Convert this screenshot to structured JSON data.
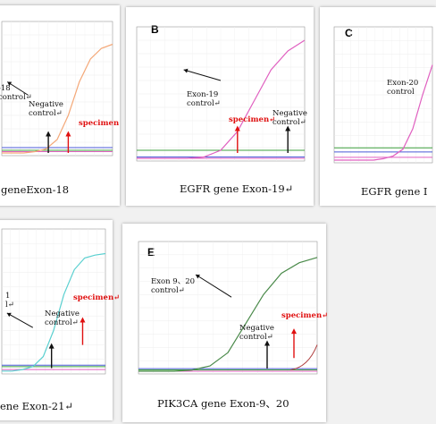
{
  "chart_data": [
    {
      "type": "line",
      "panel": "",
      "caption": "geneExon-18",
      "annotations": {
        "exon": "-18",
        "exon_suffix": "control↵",
        "negative": "Negative",
        "negative_control": "control↵",
        "specimen": "specimen"
      },
      "colors": {
        "sample": "#f4a878",
        "negative": "#1a1a1a",
        "green": "#3fa03f",
        "blue": "#4a5ad8",
        "pink": "#e060c0"
      },
      "series": [
        {
          "values": [
            0.02,
            0.02,
            0.02,
            0.03,
            0.05,
            0.12,
            0.3,
            0.55,
            0.72,
            0.8,
            0.83
          ]
        }
      ]
    },
    {
      "type": "line",
      "panel": "B",
      "caption": "EGFR gene Exon-19↵",
      "annotations": {
        "exon": "Exon-19",
        "exon_suffix": "control↵",
        "negative": "Negative",
        "negative_control": "control↵",
        "specimen": "specimen↵"
      },
      "colors": {
        "sample": "#e060c0",
        "negative": "#1a1a1a",
        "green": "#3fa03f",
        "blue": "#4a5ad8",
        "pink": "#e060c0"
      },
      "series": [
        {
          "values": [
            0.02,
            0.02,
            0.02,
            0.02,
            0.03,
            0.08,
            0.22,
            0.45,
            0.68,
            0.82,
            0.9
          ]
        }
      ]
    },
    {
      "type": "line",
      "panel": "C",
      "caption": "EGFR gene I",
      "annotations": {
        "exon": "Exon-20",
        "exon_suffix": "control",
        "negative": "",
        "negative_control": "",
        "specimen": ""
      },
      "colors": {
        "sample": "#e060c0",
        "negative": "#1a1a1a",
        "green": "#3fa03f",
        "blue": "#4a5ad8",
        "pink": "#e060c0"
      },
      "series": [
        {
          "values": [
            0.02,
            0.02,
            0.02,
            0.02,
            0.02,
            0.03,
            0.05,
            0.1,
            0.25,
            0.5,
            0.72
          ]
        }
      ]
    },
    {
      "type": "line",
      "panel": "",
      "caption": "ene Exon-21↵",
      "annotations": {
        "exon": "1",
        "exon_suffix": "l↵",
        "negative": "Negative",
        "negative_control": "control↵",
        "specimen": "specimen↵"
      },
      "colors": {
        "sample": "#5ad0d0",
        "negative": "#1a1a1a",
        "green": "#3fa03f",
        "blue": "#4a5ad8",
        "pink": "#e060c0"
      },
      "series": [
        {
          "values": [
            0.02,
            0.02,
            0.03,
            0.05,
            0.12,
            0.3,
            0.55,
            0.72,
            0.8,
            0.82,
            0.83
          ]
        }
      ]
    },
    {
      "type": "line",
      "panel": "E",
      "caption": "PIK3CA gene Exon-9、20",
      "annotations": {
        "exon": "Exon 9、20",
        "exon_suffix": "control↵",
        "negative": "Negative",
        "negative_control": "control↵",
        "specimen": "specimen↵"
      },
      "colors": {
        "sample": "#4a8a4a",
        "negative": "#1a1a1a",
        "green": "#3fa03f",
        "blue": "#4a5ad8",
        "pink": "#e060c0"
      },
      "series": [
        {
          "values": [
            0.02,
            0.02,
            0.02,
            0.03,
            0.06,
            0.16,
            0.38,
            0.6,
            0.76,
            0.84,
            0.88
          ]
        }
      ]
    }
  ]
}
